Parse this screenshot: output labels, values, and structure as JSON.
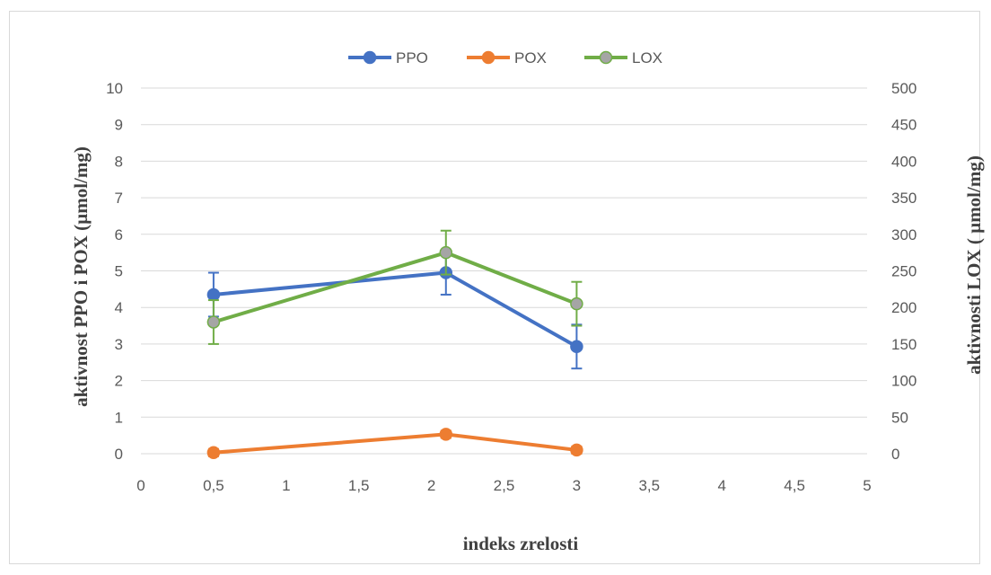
{
  "chart_data": {
    "type": "line",
    "title": "",
    "xlabel": "indeks zrelosti",
    "ylabel_left": "aktivnost PPO i POX (µmol/mg)",
    "ylabel_right": "aktivnosti LOX ( µmol/mg)",
    "xlim": [
      0,
      5
    ],
    "ylim_left": [
      0,
      10
    ],
    "ylim_right": [
      0,
      500
    ],
    "x_ticks": [
      "0",
      "0,5",
      "1",
      "1,5",
      "2",
      "2,5",
      "3",
      "3,5",
      "4",
      "4,5",
      "5"
    ],
    "y_left_ticks": [
      "0",
      "1",
      "2",
      "3",
      "4",
      "5",
      "6",
      "7",
      "8",
      "9",
      "10"
    ],
    "y_right_ticks": [
      "0",
      "50",
      "100",
      "150",
      "200",
      "250",
      "300",
      "350",
      "400",
      "450",
      "500"
    ],
    "grid": true,
    "legend_position": "top-center",
    "series": [
      {
        "name": "PPO",
        "axis": "left",
        "color": "#4472c4",
        "marker_color": "#4472c4",
        "x": [
          0.5,
          2.1,
          3.0
        ],
        "y": [
          4.35,
          4.95,
          2.93
        ],
        "err": [
          0.6,
          0.6,
          0.6
        ]
      },
      {
        "name": "POX",
        "axis": "left",
        "color": "#ed7d31",
        "marker_color": "#ed7d31",
        "x": [
          0.5,
          2.1,
          3.0
        ],
        "y": [
          0.03,
          0.53,
          0.1
        ],
        "err": [
          0.1,
          0.1,
          0.1
        ]
      },
      {
        "name": "LOX",
        "axis": "right",
        "color": "#70ad47",
        "marker_color": "#a5a5a5",
        "x": [
          0.5,
          2.1,
          3.0
        ],
        "y": [
          180,
          275,
          205
        ],
        "err": [
          30,
          30,
          30
        ]
      }
    ]
  }
}
